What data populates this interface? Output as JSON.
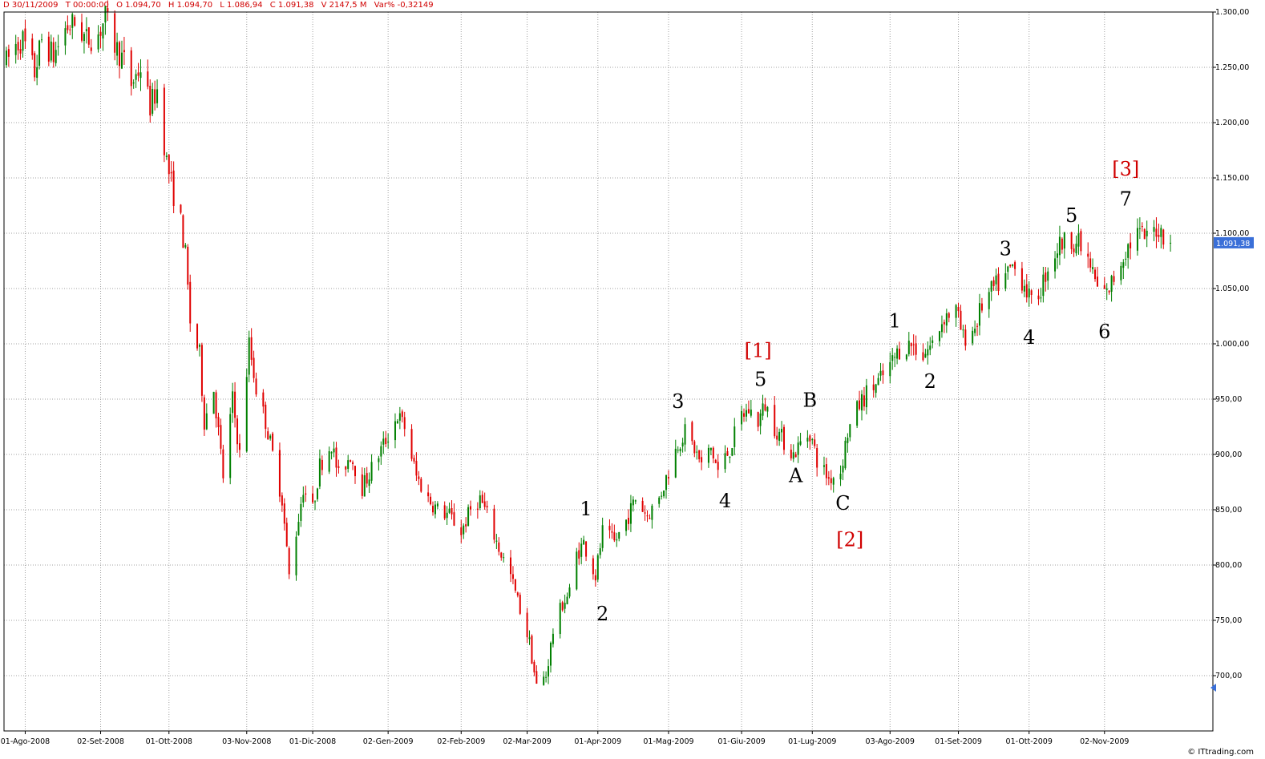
{
  "header": {
    "date": "D 30/11/2009",
    "time": "T 00:00:00",
    "open": "O 1.094,70",
    "high": "H 1.094,70",
    "low": "L 1.086,94",
    "close": "C 1.091,38",
    "volume": "V 2147,5 M",
    "varpct": "Var% -0,32149"
  },
  "credit": "© ITtrading.com",
  "colors": {
    "up": "#008000",
    "down": "#e00000",
    "grid": "#a0a0a0",
    "price_tag": "#3a6fd8",
    "annotation_black": "#000000",
    "annotation_red": "#d00000"
  },
  "chart_data": {
    "type": "candlestick",
    "ylim": [
      650,
      1300
    ],
    "y_ticks": [
      {
        "value": 700,
        "label": "700,00"
      },
      {
        "value": 750,
        "label": "750,00"
      },
      {
        "value": 800,
        "label": "800,00"
      },
      {
        "value": 850,
        "label": "850,00"
      },
      {
        "value": 900,
        "label": "900,00"
      },
      {
        "value": 950,
        "label": "950,00"
      },
      {
        "value": 1000,
        "label": "1.000,00"
      },
      {
        "value": 1050,
        "label": "1.050,00"
      },
      {
        "value": 1100,
        "label": "1.100,00"
      },
      {
        "value": 1150,
        "label": "1.150,00"
      },
      {
        "value": 1200,
        "label": "1.200,00"
      },
      {
        "value": 1250,
        "label": "1.250,00"
      },
      {
        "value": 1300,
        "label": "1.300,00"
      }
    ],
    "x_ticks": [
      {
        "date": "2008-08-01",
        "label": "01-Ago-2008"
      },
      {
        "date": "2008-09-02",
        "label": "02-Set-2008"
      },
      {
        "date": "2008-10-01",
        "label": "01-Ott-2008"
      },
      {
        "date": "2008-11-03",
        "label": "03-Nov-2008"
      },
      {
        "date": "2008-12-01",
        "label": "01-Dic-2008"
      },
      {
        "date": "2009-01-02",
        "label": "02-Gen-2009"
      },
      {
        "date": "2009-02-02",
        "label": "02-Feb-2009"
      },
      {
        "date": "2009-03-02",
        "label": "02-Mar-2009"
      },
      {
        "date": "2009-04-01",
        "label": "01-Apr-2009"
      },
      {
        "date": "2009-05-01",
        "label": "01-Mag-2009"
      },
      {
        "date": "2009-06-01",
        "label": "01-Giu-2009"
      },
      {
        "date": "2009-07-01",
        "label": "01-Lug-2009"
      },
      {
        "date": "2009-08-03",
        "label": "03-Ago-2009"
      },
      {
        "date": "2009-09-01",
        "label": "01-Set-2009"
      },
      {
        "date": "2009-10-01",
        "label": "01-Ott-2009"
      },
      {
        "date": "2009-11-02",
        "label": "02-Nov-2009"
      }
    ],
    "x_range": [
      "2008-07-23",
      "2009-12-18"
    ],
    "last_price": {
      "value": 1091.38,
      "label": "1.091,38"
    },
    "path": [
      [
        "2008-07-24",
        1255
      ],
      [
        "2008-07-28",
        1270
      ],
      [
        "2008-07-31",
        1275
      ],
      [
        "2008-08-05",
        1245
      ],
      [
        "2008-08-08",
        1275
      ],
      [
        "2008-08-13",
        1260
      ],
      [
        "2008-08-18",
        1285
      ],
      [
        "2008-08-22",
        1290
      ],
      [
        "2008-08-27",
        1275
      ],
      [
        "2008-09-01",
        1280
      ],
      [
        "2008-09-04",
        1295
      ],
      [
        "2008-09-08",
        1270
      ],
      [
        "2008-09-12",
        1255
      ],
      [
        "2008-09-15",
        1235
      ],
      [
        "2008-09-19",
        1250
      ],
      [
        "2008-09-23",
        1215
      ],
      [
        "2008-09-26",
        1230
      ],
      [
        "2008-09-30",
        1165
      ],
      [
        "2008-10-03",
        1135
      ],
      [
        "2008-10-06",
        1110
      ],
      [
        "2008-10-08",
        1080
      ],
      [
        "2008-10-10",
        1020
      ],
      [
        "2008-10-14",
        990
      ],
      [
        "2008-10-16",
        930
      ],
      [
        "2008-10-20",
        960
      ],
      [
        "2008-10-24",
        880
      ],
      [
        "2008-10-28",
        950
      ],
      [
        "2008-10-31",
        900
      ],
      [
        "2008-11-04",
        1000
      ],
      [
        "2008-11-07",
        960
      ],
      [
        "2008-11-11",
        930
      ],
      [
        "2008-11-14",
        900
      ],
      [
        "2008-11-18",
        860
      ],
      [
        "2008-11-21",
        790
      ],
      [
        "2008-11-24",
        830
      ],
      [
        "2008-11-27",
        870
      ],
      [
        "2008-12-01",
        850
      ],
      [
        "2008-12-04",
        890
      ],
      [
        "2008-12-09",
        910
      ],
      [
        "2008-12-12",
        880
      ],
      [
        "2008-12-17",
        900
      ],
      [
        "2008-12-22",
        870
      ],
      [
        "2008-12-29",
        900
      ],
      [
        "2009-01-06",
        935
      ],
      [
        "2009-01-09",
        925
      ],
      [
        "2009-01-14",
        880
      ],
      [
        "2009-01-19",
        860
      ],
      [
        "2009-01-23",
        850
      ],
      [
        "2009-01-28",
        845
      ],
      [
        "2009-02-02",
        830
      ],
      [
        "2009-02-06",
        850
      ],
      [
        "2009-02-10",
        860
      ],
      [
        "2009-02-13",
        845
      ],
      [
        "2009-02-18",
        815
      ],
      [
        "2009-02-23",
        790
      ],
      [
        "2009-02-27",
        760
      ],
      [
        "2009-03-03",
        730
      ],
      [
        "2009-03-06",
        690
      ],
      [
        "2009-03-10",
        700
      ],
      [
        "2009-03-13",
        740
      ],
      [
        "2009-03-17",
        765
      ],
      [
        "2009-03-20",
        775
      ],
      [
        "2009-03-23",
        810
      ],
      [
        "2009-03-26",
        820
      ],
      [
        "2009-03-31",
        790
      ],
      [
        "2009-04-03",
        830
      ],
      [
        "2009-04-08",
        820
      ],
      [
        "2009-04-13",
        840
      ],
      [
        "2009-04-17",
        860
      ],
      [
        "2009-04-22",
        845
      ],
      [
        "2009-04-27",
        860
      ],
      [
        "2009-05-01",
        885
      ],
      [
        "2009-05-05",
        910
      ],
      [
        "2009-05-08",
        920
      ],
      [
        "2009-05-12",
        905
      ],
      [
        "2009-05-15",
        890
      ],
      [
        "2009-05-19",
        905
      ],
      [
        "2009-05-22",
        885
      ],
      [
        "2009-05-27",
        905
      ],
      [
        "2009-06-01",
        935
      ],
      [
        "2009-06-04",
        940
      ],
      [
        "2009-06-08",
        930
      ],
      [
        "2009-06-11",
        945
      ],
      [
        "2009-06-15",
        925
      ],
      [
        "2009-06-18",
        915
      ],
      [
        "2009-06-23",
        900
      ],
      [
        "2009-06-26",
        910
      ],
      [
        "2009-06-30",
        920
      ],
      [
        "2009-07-03",
        895
      ],
      [
        "2009-07-08",
        878
      ],
      [
        "2009-07-13",
        885
      ],
      [
        "2009-07-16",
        920
      ],
      [
        "2009-07-21",
        945
      ],
      [
        "2009-07-24",
        955
      ],
      [
        "2009-07-29",
        965
      ],
      [
        "2009-08-03",
        980
      ],
      [
        "2009-08-07",
        995
      ],
      [
        "2009-08-12",
        1000
      ],
      [
        "2009-08-17",
        990
      ],
      [
        "2009-08-21",
        1000
      ],
      [
        "2009-08-26",
        1025
      ],
      [
        "2009-08-31",
        1030
      ],
      [
        "2009-09-03",
        1005
      ],
      [
        "2009-09-08",
        1015
      ],
      [
        "2009-09-11",
        1035
      ],
      [
        "2009-09-16",
        1050
      ],
      [
        "2009-09-21",
        1060
      ],
      [
        "2009-09-24",
        1070
      ],
      [
        "2009-09-29",
        1055
      ],
      [
        "2009-10-02",
        1035
      ],
      [
        "2009-10-06",
        1050
      ],
      [
        "2009-10-09",
        1070
      ],
      [
        "2009-10-14",
        1090
      ],
      [
        "2009-10-19",
        1095
      ],
      [
        "2009-10-22",
        1090
      ],
      [
        "2009-10-27",
        1070
      ],
      [
        "2009-10-30",
        1050
      ],
      [
        "2009-11-03",
        1045
      ],
      [
        "2009-11-06",
        1060
      ],
      [
        "2009-11-11",
        1085
      ],
      [
        "2009-11-16",
        1100
      ],
      [
        "2009-11-20",
        1095
      ],
      [
        "2009-11-24",
        1105
      ],
      [
        "2009-11-27",
        1100
      ],
      [
        "2009-11-30",
        1091.38
      ]
    ],
    "annotations": [
      {
        "label": "1",
        "date": "2009-03-27",
        "value": 845,
        "color": "annotation_black"
      },
      {
        "label": "2",
        "date": "2009-04-03",
        "value": 750,
        "color": "annotation_black"
      },
      {
        "label": "3",
        "date": "2009-05-05",
        "value": 942,
        "color": "annotation_black"
      },
      {
        "label": "4",
        "date": "2009-05-25",
        "value": 852,
        "color": "annotation_black"
      },
      {
        "label": "5",
        "date": "2009-06-09",
        "value": 962,
        "color": "annotation_black"
      },
      {
        "label": "[1]",
        "date": "2009-06-08",
        "value": 988,
        "color": "annotation_red"
      },
      {
        "label": "A",
        "date": "2009-06-24",
        "value": 875,
        "color": "annotation_black"
      },
      {
        "label": "B",
        "date": "2009-06-30",
        "value": 943,
        "color": "annotation_black"
      },
      {
        "label": "C",
        "date": "2009-07-14",
        "value": 850,
        "color": "annotation_black"
      },
      {
        "label": "[2]",
        "date": "2009-07-17",
        "value": 817,
        "color": "annotation_red"
      },
      {
        "label": "1",
        "date": "2009-08-05",
        "value": 1015,
        "color": "annotation_black"
      },
      {
        "label": "2",
        "date": "2009-08-20",
        "value": 960,
        "color": "annotation_black"
      },
      {
        "label": "3",
        "date": "2009-09-21",
        "value": 1080,
        "color": "annotation_black"
      },
      {
        "label": "4",
        "date": "2009-10-01",
        "value": 1000,
        "color": "annotation_black"
      },
      {
        "label": "5",
        "date": "2009-10-19",
        "value": 1110,
        "color": "annotation_black"
      },
      {
        "label": "6",
        "date": "2009-11-02",
        "value": 1005,
        "color": "annotation_black"
      },
      {
        "label": "7",
        "date": "2009-11-11",
        "value": 1125,
        "color": "annotation_black"
      },
      {
        "label": "[3]",
        "date": "2009-11-11",
        "value": 1152,
        "color": "annotation_red"
      }
    ]
  }
}
